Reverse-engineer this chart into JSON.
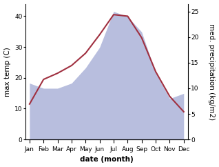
{
  "months": [
    "Jan",
    "Feb",
    "Mar",
    "Apr",
    "May",
    "Jun",
    "Jul",
    "Aug",
    "Sep",
    "Oct",
    "Nov",
    "Dec"
  ],
  "temperature": [
    11.5,
    19.5,
    21.5,
    24.0,
    28.0,
    34.0,
    40.5,
    40.0,
    33.0,
    22.0,
    14.0,
    9.0
  ],
  "precipitation": [
    11,
    10,
    10,
    11,
    14,
    18,
    25,
    24,
    21,
    13,
    8,
    9
  ],
  "temp_color": "#a03040",
  "precip_fill_color": "#b8bede",
  "background_color": "#ffffff",
  "left_ylabel": "max temp (C)",
  "right_ylabel": "med. precipitation (kg/m2)",
  "xlabel": "date (month)",
  "ylim_left": [
    0,
    44
  ],
  "ylim_right": [
    0,
    26.5
  ],
  "left_yticks": [
    0,
    10,
    20,
    30,
    40
  ],
  "right_yticks": [
    0,
    5,
    10,
    15,
    20,
    25
  ],
  "label_fontsize": 7.5,
  "tick_fontsize": 6.5
}
